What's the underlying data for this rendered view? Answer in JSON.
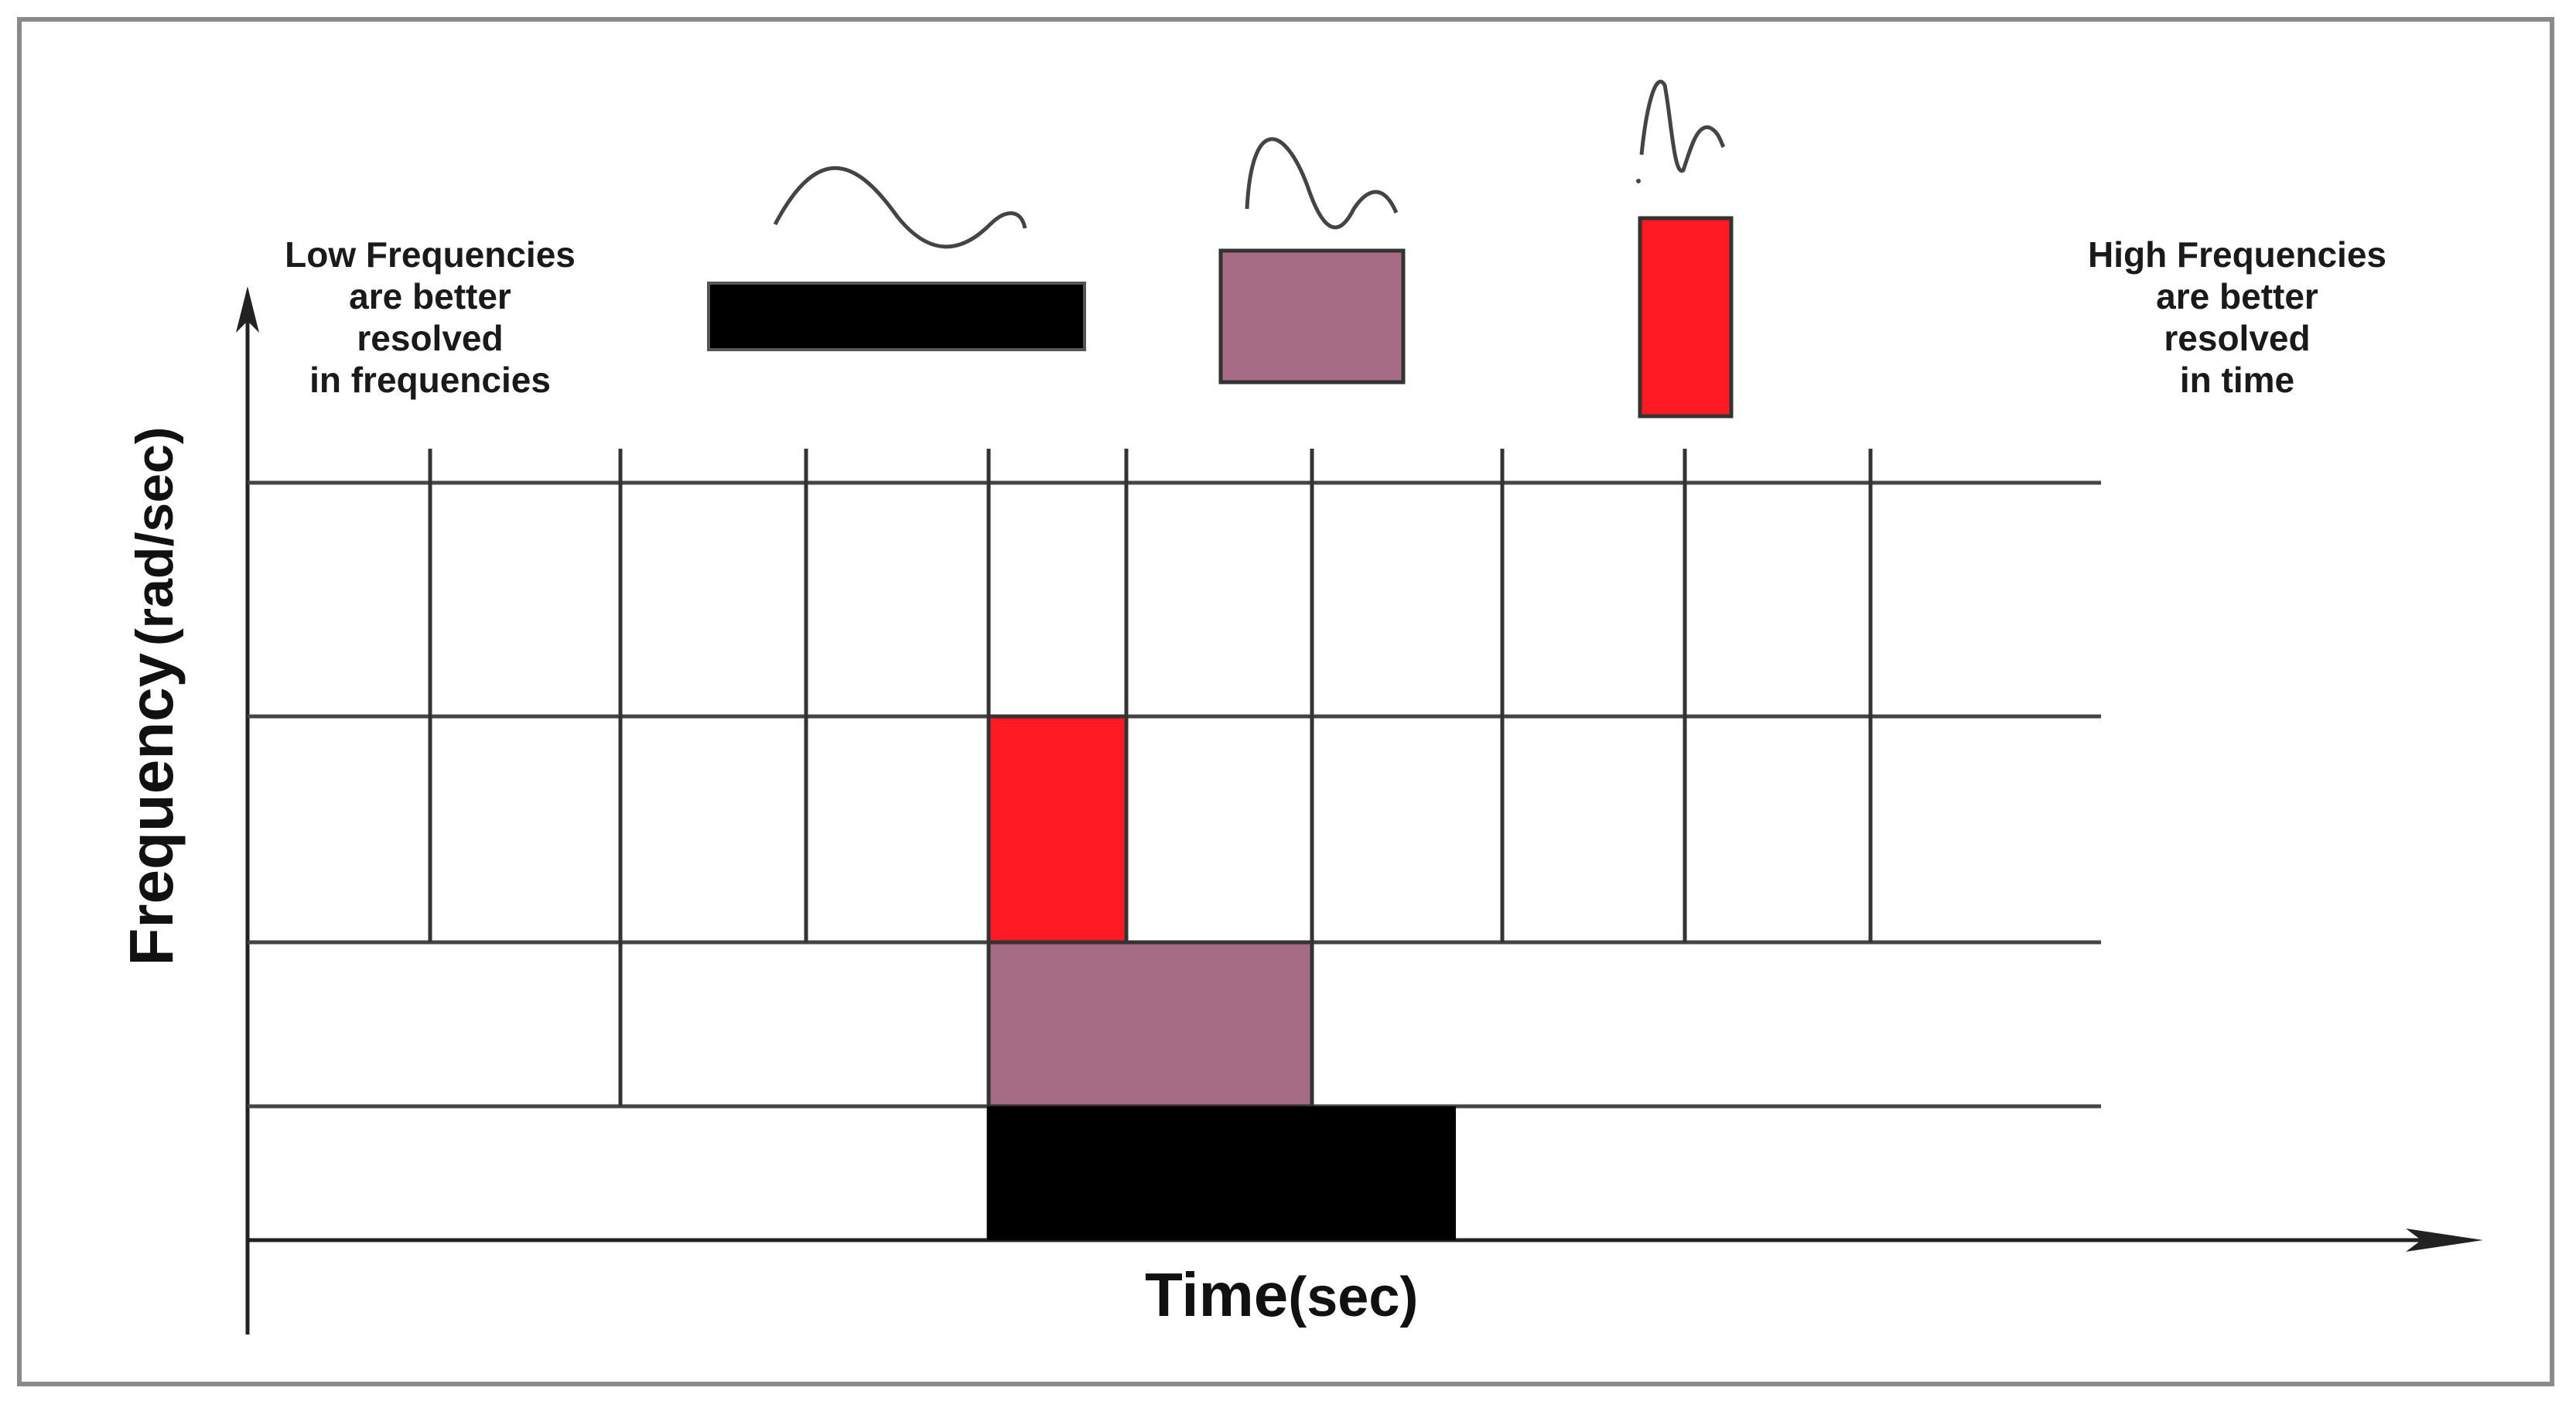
{
  "notes": {
    "low": [
      "Low Frequencies",
      "are better",
      "resolved",
      "in frequencies"
    ],
    "high": [
      "High Frequencies",
      "are better",
      "resolved",
      "in time"
    ]
  },
  "axes": {
    "x_label": "Time",
    "x_unit": "(sec)",
    "y_label": "Frequency",
    "y_unit": "(rad/sec)"
  },
  "colors": {
    "high_freq_tile": "#ff1a24",
    "mid_freq_tile": "#a66b85",
    "low_freq_tile": "#000000",
    "grid": "#444444",
    "frame": "#8a8a8a"
  },
  "legend_icons": [
    "low-frequency-wave-icon",
    "mid-frequency-wave-icon",
    "high-frequency-wave-icon"
  ]
}
